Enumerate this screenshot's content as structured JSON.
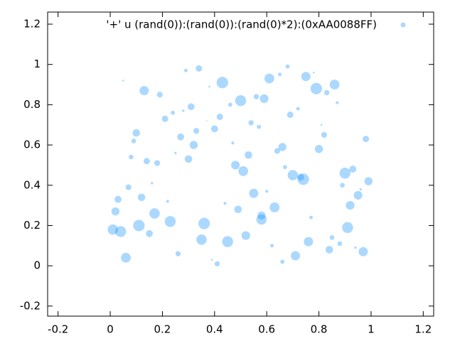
{
  "chart_data": {
    "type": "bubble",
    "series": [
      {
        "name": "'+' u (rand(0)):(rand(0)):(rand(0)*2):(0xAA0088FF)",
        "color": "#0088ff",
        "x": [
          0.12,
          0.87,
          0.45,
          0.33,
          0.71,
          0.05,
          0.93,
          0.58,
          0.24,
          0.66,
          0.41,
          0.79,
          0.16,
          0.52,
          0.98,
          0.29,
          0.63,
          0.08,
          0.84,
          0.37,
          0.55,
          0.19,
          0.91,
          0.47,
          0.73,
          0.02,
          0.68,
          0.35,
          0.81,
          0.14,
          0.59,
          0.26,
          0.96,
          0.43,
          0.77,
          0.1,
          0.51,
          0.88,
          0.31,
          0.64,
          0.22,
          0.75,
          0.04,
          0.57,
          0.99,
          0.39,
          0.69,
          0.17,
          0.83,
          0.48,
          0.27,
          0.94,
          0.61,
          0.07,
          0.36,
          0.72,
          0.53,
          0.85,
          0.13,
          0.44,
          0.9,
          0.21,
          0.66,
          0.32,
          0.78,
          0.01,
          0.56,
          0.95,
          0.4,
          0.62,
          0.18,
          0.86,
          0.49,
          0.28,
          0.74,
          0.09,
          0.97,
          0.34,
          0.6,
          0.23,
          0.8,
          0.46,
          0.15,
          0.7,
          0.38,
          0.92,
          0.54,
          0.06,
          0.82,
          0.3,
          0.65,
          0.11,
          0.89,
          0.42,
          0.76,
          0.25,
          0.5,
          0.03,
          0.67,
          0.58
        ],
        "values": [
          0.34,
          0.81,
          0.12,
          0.67,
          0.05,
          0.92,
          0.48,
          0.23,
          0.76,
          0.59,
          0.01,
          0.88,
          0.41,
          0.15,
          0.63,
          0.97,
          0.29,
          0.54,
          0.08,
          0.72,
          0.36,
          0.85,
          0.19,
          0.61,
          0.44,
          0.27,
          0.99,
          0.13,
          0.7,
          0.52,
          0.83,
          0.06,
          0.38,
          0.91,
          0.24,
          0.66,
          0.47,
          0.11,
          0.79,
          0.57,
          0.32,
          0.94,
          0.17,
          0.69,
          0.42,
          0.03,
          0.75,
          0.26,
          0.86,
          0.5,
          0.64,
          0.09,
          0.93,
          0.39,
          0.21,
          0.78,
          0.55,
          0.14,
          0.87,
          0.31,
          0.46,
          0.73,
          0.02,
          0.6,
          0.96,
          0.18,
          0.84,
          0.35,
          0.68,
          0.1,
          0.51,
          0.9,
          0.28,
          0.77,
          0.43,
          0.62,
          0.07,
          0.98,
          0.37,
          0.22,
          0.58,
          0.8,
          0.16,
          0.45,
          0.89,
          0.3,
          0.71,
          0.04,
          0.65,
          0.53,
          0.95,
          0.2,
          0.4,
          0.74,
          0.12,
          0.56,
          0.82,
          0.33,
          0.49,
          0.25
        ],
        "sizes": [
          1.2,
          0.4,
          1.8,
          0.9,
          1.5,
          0.2,
          1.1,
          1.7,
          0.6,
          1.3,
          0.8,
          1.9,
          0.3,
          1.4,
          1.0,
          0.5,
          1.6,
          0.7,
          1.2,
          0.1,
          1.5,
          0.9,
          1.8,
          0.4,
          1.1,
          1.3,
          0.6,
          1.7,
          0.2,
          1.0,
          1.4,
          0.8,
          0.3,
          1.9,
          0.5,
          1.2,
          1.6,
          0.7,
          1.1,
          0.9,
          0.4,
          1.5,
          1.8,
          0.6,
          1.3,
          0.2,
          1.0,
          1.7,
          0.8,
          1.4,
          1.1,
          0.3,
          1.6,
          0.9,
          1.9,
          0.5,
          1.2,
          0.7,
          1.5,
          0.4,
          1.8,
          1.0,
          0.6,
          1.3,
          0.2,
          1.7,
          0.8,
          1.4,
          1.1,
          0.5,
          0.9,
          1.6,
          1.2,
          0.3,
          1.9,
          0.7,
          1.5,
          1.0,
          0.4,
          1.8,
          1.3,
          0.6,
          1.1,
          1.7,
          0.2,
          1.4,
          0.8,
          1.6,
          0.9,
          1.2,
          0.5,
          1.9,
          0.7,
          1.0,
          1.5,
          0.3,
          1.8,
          1.1,
          0.6,
          1.3
        ]
      }
    ],
    "xlim": [
      -0.24,
      1.24
    ],
    "ylim": [
      -0.25,
      1.26
    ],
    "xticks": [
      -0.2,
      0,
      0.2,
      0.4,
      0.6,
      0.8,
      1,
      1.2
    ],
    "yticks": [
      -0.2,
      0,
      0.2,
      0.4,
      0.6,
      0.8,
      1,
      1.2
    ],
    "legend": "top-right"
  }
}
